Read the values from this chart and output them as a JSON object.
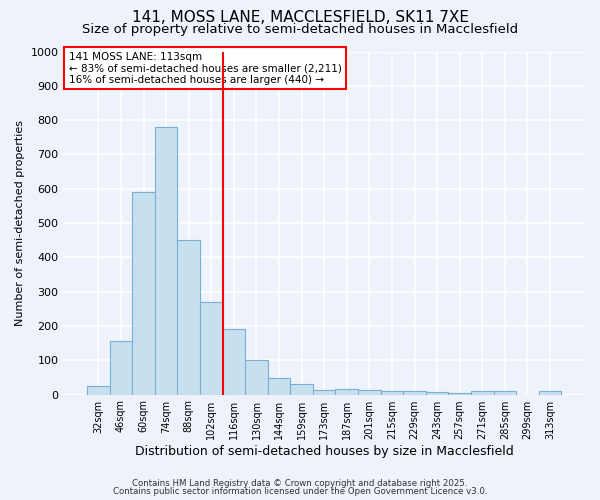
{
  "title1": "141, MOSS LANE, MACCLESFIELD, SK11 7XE",
  "title2": "Size of property relative to semi-detached houses in Macclesfield",
  "xlabel": "Distribution of semi-detached houses by size in Macclesfield",
  "ylabel": "Number of semi-detached properties",
  "categories": [
    "32sqm",
    "46sqm",
    "60sqm",
    "74sqm",
    "88sqm",
    "102sqm",
    "116sqm",
    "130sqm",
    "144sqm",
    "159sqm",
    "173sqm",
    "187sqm",
    "201sqm",
    "215sqm",
    "229sqm",
    "243sqm",
    "257sqm",
    "271sqm",
    "285sqm",
    "299sqm",
    "313sqm"
  ],
  "values": [
    25,
    155,
    590,
    780,
    450,
    270,
    190,
    100,
    48,
    30,
    13,
    15,
    12,
    10,
    10,
    8,
    5,
    10,
    10,
    0,
    10
  ],
  "bar_color": "#c8dff0",
  "bar_edge_color": "#7aafd4",
  "red_line_index": 6,
  "red_line_label": "141 MOSS LANE: 113sqm",
  "annotation_smaller": "← 83% of semi-detached houses are smaller (2,211)",
  "annotation_larger": "16% of semi-detached houses are larger (440) →",
  "annotation_box_color": "white",
  "annotation_box_edge": "red",
  "ylim": [
    0,
    1000
  ],
  "yticks": [
    0,
    100,
    200,
    300,
    400,
    500,
    600,
    700,
    800,
    900,
    1000
  ],
  "footer1": "Contains HM Land Registry data © Crown copyright and database right 2025.",
  "footer2": "Contains public sector information licensed under the Open Government Licence v3.0.",
  "background_color": "#eef2fb",
  "grid_color": "white",
  "title_fontsize": 11,
  "subtitle_fontsize": 9.5
}
